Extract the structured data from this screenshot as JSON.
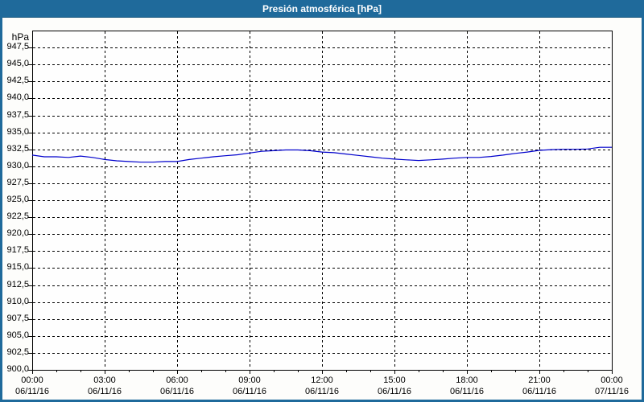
{
  "window": {
    "title": "Presión atmosférica [hPa]",
    "colors": {
      "titlebar_bg": "#1f6a9b",
      "titlebar_text": "#ffffff",
      "window_border": "#1f6a9b",
      "content_bg": "#fdfdfb",
      "plot_bg": "#fefefe",
      "grid_color": "#000000",
      "axis_color": "#000000",
      "line_color": "#0000cc"
    }
  },
  "chart_data": {
    "type": "line",
    "title": "Presión atmosférica [hPa]",
    "ylabel": "hPa",
    "xlabel": "",
    "ylim": [
      900,
      950
    ],
    "y_tick_step": 2.5,
    "y_first_label_value": 947.5,
    "y_tick_labels": [
      "947,5",
      "945,0",
      "942,5",
      "940,0",
      "937,5",
      "935,0",
      "932,5",
      "930,0",
      "927,5",
      "925,0",
      "922,5",
      "920,0",
      "917,5",
      "915,0",
      "912,5",
      "910,0",
      "907,5",
      "905,0",
      "902,5",
      "900,0"
    ],
    "x_ticks": [
      {
        "time": "00:00",
        "date": "06/11/16"
      },
      {
        "time": "03:00",
        "date": "06/11/16"
      },
      {
        "time": "06:00",
        "date": "06/11/16"
      },
      {
        "time": "09:00",
        "date": "06/11/16"
      },
      {
        "time": "12:00",
        "date": "06/11/16"
      },
      {
        "time": "15:00",
        "date": "06/11/16"
      },
      {
        "time": "18:00",
        "date": "06/11/16"
      },
      {
        "time": "21:00",
        "date": "06/11/16"
      },
      {
        "time": "00:00",
        "date": "07/11/16"
      }
    ],
    "x_hours_total": 24,
    "x_tick_interval_hours": 3,
    "x_minor_tick_hours": 1,
    "grid": "dashed",
    "legend": "none",
    "series": [
      {
        "name": "Presión atmosférica",
        "color": "#0000cc",
        "x_start_hour": 0,
        "x_step_hours": 0.5,
        "values": [
          931.65,
          931.4,
          931.4,
          931.3,
          931.5,
          931.3,
          931.0,
          930.8,
          930.7,
          930.6,
          930.6,
          930.7,
          930.7,
          931.0,
          931.2,
          931.4,
          931.55,
          931.7,
          931.95,
          932.2,
          932.3,
          932.4,
          932.4,
          932.3,
          932.1,
          932.0,
          931.8,
          931.6,
          931.4,
          931.2,
          931.05,
          930.95,
          930.85,
          930.95,
          931.05,
          931.2,
          931.3,
          931.3,
          931.45,
          931.65,
          931.9,
          932.1,
          932.35,
          932.45,
          932.5,
          932.5,
          932.55,
          932.8,
          932.8
        ]
      }
    ]
  }
}
